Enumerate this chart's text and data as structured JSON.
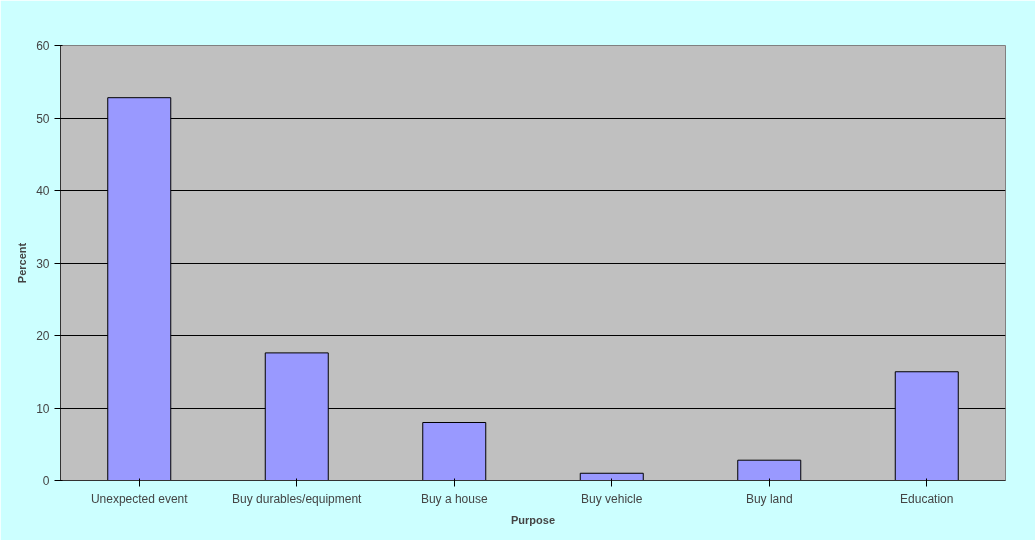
{
  "chart_data": {
    "type": "bar",
    "categories": [
      "Unexpected event",
      "Buy durables/equipment",
      "Buy a house",
      "Buy vehicle",
      "Buy land",
      "Education"
    ],
    "values": [
      52.8,
      17.6,
      8.0,
      1.0,
      2.8,
      15.0
    ],
    "color": "#9999ff",
    "xlabel": "Purpose",
    "ylabel": "Percent",
    "ylim": [
      0,
      60
    ],
    "yticks": [
      0,
      10,
      20,
      30,
      40,
      50,
      60
    ],
    "grid": "y"
  }
}
